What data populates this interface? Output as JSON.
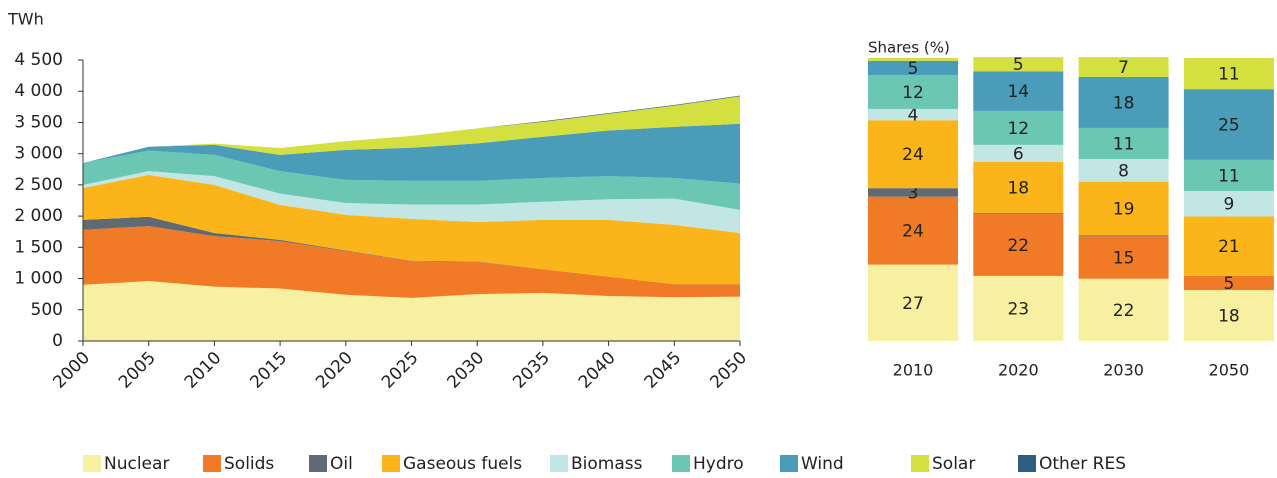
{
  "chart_data": [
    {
      "type": "area",
      "stacked": true,
      "y_label": "TWh",
      "x": [
        2000,
        2005,
        2010,
        2015,
        2020,
        2025,
        2030,
        2035,
        2040,
        2045,
        2050
      ],
      "xlim": [
        2000,
        2050
      ],
      "xticks": [
        2000,
        2005,
        2010,
        2015,
        2020,
        2025,
        2030,
        2035,
        2040,
        2045,
        2050
      ],
      "ylim": [
        0,
        4500
      ],
      "yticks": [
        0,
        500,
        {
          "value": 1000,
          "label": "1 000"
        },
        {
          "value": 1500,
          "label": "1 500"
        },
        {
          "value": 2000,
          "label": "2 000"
        },
        {
          "value": 2500,
          "label": "2 500"
        },
        {
          "value": 3000,
          "label": "3 000"
        },
        {
          "value": 3500,
          "label": "3 500"
        },
        {
          "value": 4000,
          "label": "4 000"
        },
        {
          "value": 4500,
          "label": "4 500"
        }
      ],
      "series": [
        {
          "name": "Nuclear",
          "color": "#f6f0a0",
          "values": [
            900,
            960,
            870,
            840,
            740,
            690,
            750,
            770,
            720,
            700,
            710
          ]
        },
        {
          "name": "Solids",
          "color": "#f07a26",
          "values": [
            880,
            880,
            810,
            760,
            700,
            590,
            520,
            380,
            310,
            210,
            200
          ]
        },
        {
          "name": "Oil",
          "color": "#5f6a72",
          "values": [
            160,
            150,
            50,
            20,
            10,
            5,
            5,
            0,
            0,
            0,
            0
          ]
        },
        {
          "name": "Gaseous fuels",
          "color": "#fbb51a",
          "values": [
            510,
            670,
            770,
            560,
            570,
            670,
            630,
            790,
            910,
            950,
            820
          ]
        },
        {
          "name": "Biomass",
          "color": "#c2e6e4",
          "values": [
            50,
            60,
            140,
            180,
            190,
            230,
            280,
            290,
            330,
            420,
            370
          ]
        },
        {
          "name": "Hydro",
          "color": "#6bc7b4",
          "values": [
            350,
            330,
            340,
            360,
            370,
            380,
            380,
            380,
            370,
            330,
            420
          ]
        },
        {
          "name": "Wind",
          "color": "#4a9cb8",
          "values": [
            0,
            60,
            160,
            260,
            480,
            530,
            600,
            660,
            730,
            820,
            960
          ]
        },
        {
          "name": "Solar",
          "color": "#d4df40",
          "values": [
            0,
            0,
            20,
            110,
            140,
            190,
            240,
            240,
            270,
            340,
            440
          ]
        },
        {
          "name": "Other RES",
          "color": "#2e5f80",
          "values": [
            0,
            0,
            0,
            0,
            0,
            0,
            0,
            10,
            10,
            10,
            10
          ]
        }
      ]
    },
    {
      "type": "bar",
      "stacked": true,
      "title": "Shares (%)",
      "categories": [
        "2010",
        "2020",
        "2030",
        "2050"
      ],
      "ylim": [
        0,
        100
      ],
      "series": [
        {
          "name": "Nuclear",
          "color": "#f6f0a0",
          "values": [
            27,
            23,
            22,
            18
          ],
          "value_labels": [
            "27",
            "23",
            "22",
            "18"
          ]
        },
        {
          "name": "Solids",
          "color": "#f07a26",
          "values": [
            24,
            22,
            15,
            5
          ],
          "value_labels": [
            "24",
            "22",
            "15",
            "5"
          ]
        },
        {
          "name": "Oil",
          "color": "#5f6a72",
          "values": [
            3,
            0.3,
            0.3,
            0
          ],
          "value_labels": [
            "3",
            null,
            null,
            null
          ]
        },
        {
          "name": "Gaseous fuels",
          "color": "#fbb51a",
          "values": [
            24,
            18,
            19,
            21
          ],
          "value_labels": [
            "24",
            "18",
            "19",
            "21"
          ]
        },
        {
          "name": "Biomass",
          "color": "#c2e6e4",
          "values": [
            4,
            6,
            8,
            9
          ],
          "value_labels": [
            "4",
            "6",
            "8",
            "9"
          ]
        },
        {
          "name": "Hydro",
          "color": "#6bc7b4",
          "values": [
            12,
            12,
            11,
            11
          ],
          "value_labels": [
            "12",
            "12",
            "11",
            "11"
          ]
        },
        {
          "name": "Wind",
          "color": "#4a9cb8",
          "values": [
            5,
            14,
            18,
            25
          ],
          "value_labels": [
            "5",
            "14",
            "18",
            "25"
          ]
        },
        {
          "name": "Solar",
          "color": "#d4df40",
          "values": [
            1,
            5,
            7,
            11
          ],
          "value_labels": [
            null,
            "5",
            "7",
            "11"
          ]
        },
        {
          "name": "Other RES",
          "color": "#2e5f80",
          "values": [
            0,
            0,
            0,
            0
          ],
          "value_labels": [
            null,
            null,
            null,
            null
          ]
        }
      ]
    }
  ]
}
